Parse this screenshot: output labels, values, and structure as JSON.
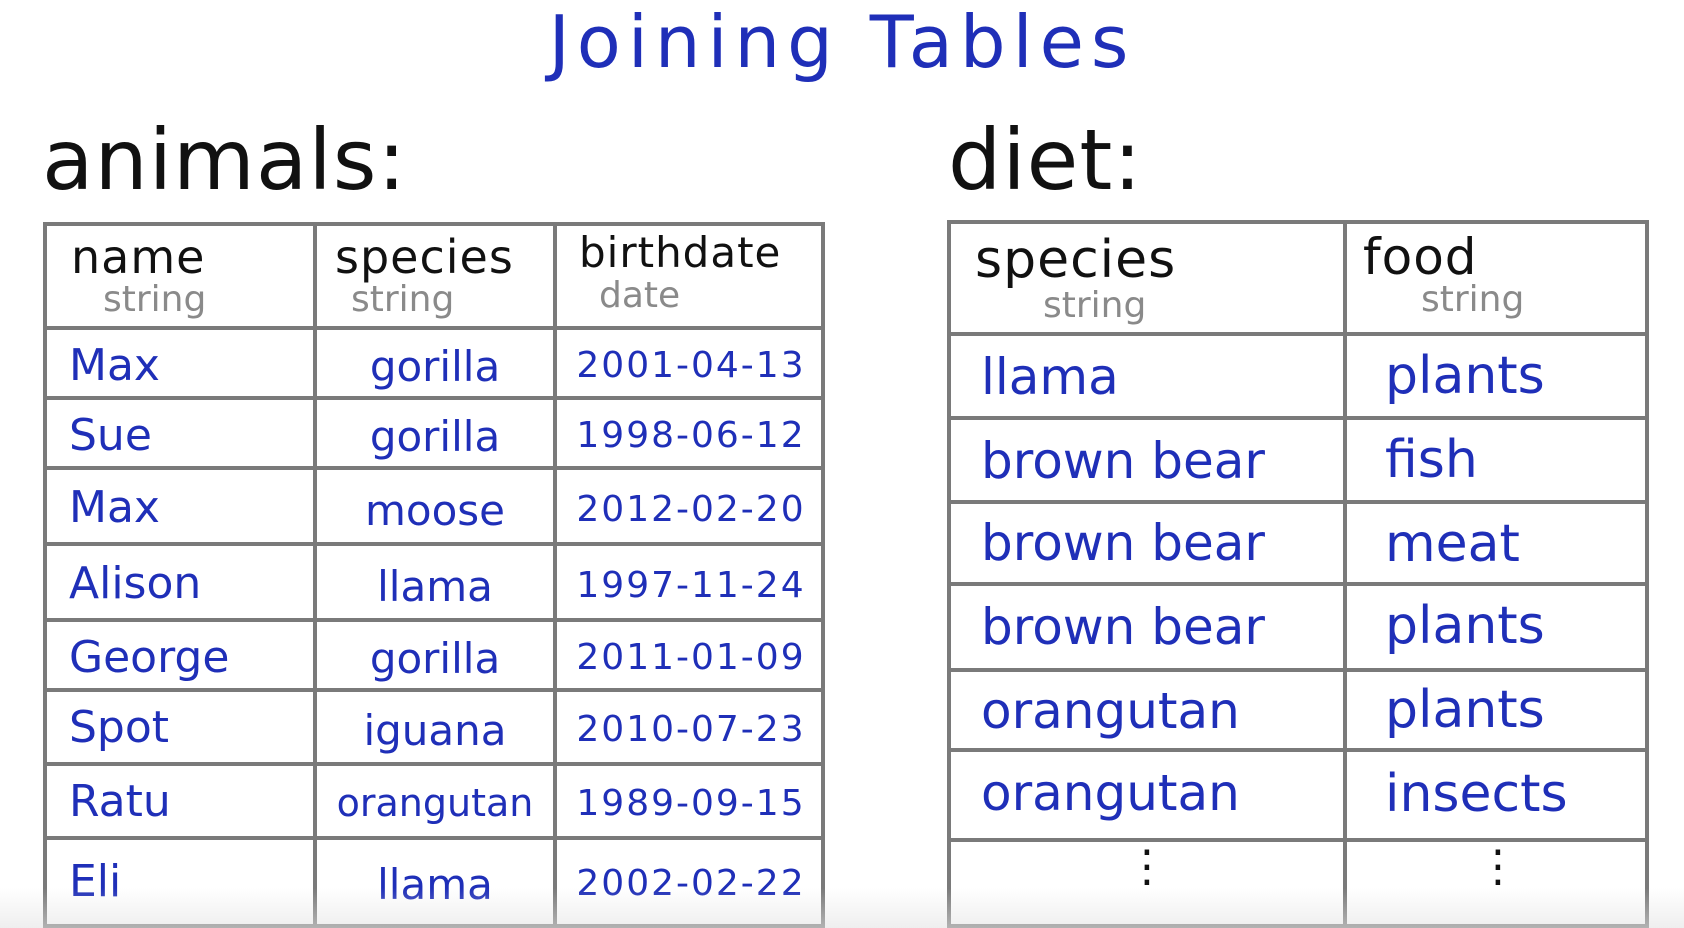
{
  "title": "Joining Tables",
  "animals": {
    "table_label": "animals:",
    "columns": [
      {
        "name": "name",
        "type": "string"
      },
      {
        "name": "species",
        "type": "string"
      },
      {
        "name": "birthdate",
        "type": "date"
      }
    ],
    "rows": [
      {
        "name": "Max",
        "species": "gorilla",
        "birthdate": "2001-04-13"
      },
      {
        "name": "Sue",
        "species": "gorilla",
        "birthdate": "1998-06-12"
      },
      {
        "name": "Max",
        "species": "moose",
        "birthdate": "2012-02-20"
      },
      {
        "name": "Alison",
        "species": "llama",
        "birthdate": "1997-11-24"
      },
      {
        "name": "George",
        "species": "gorilla",
        "birthdate": "2011-01-09"
      },
      {
        "name": "Spot",
        "species": "iguana",
        "birthdate": "2010-07-23"
      },
      {
        "name": "Ratu",
        "species": "orangutan",
        "birthdate": "1989-09-15"
      },
      {
        "name": "Eli",
        "species": "llama",
        "birthdate": "2002-02-22"
      }
    ]
  },
  "diet": {
    "table_label": "diet:",
    "columns": [
      {
        "name": "species",
        "type": "string"
      },
      {
        "name": "food",
        "type": "string"
      }
    ],
    "rows": [
      {
        "species": "llama",
        "food": "plants"
      },
      {
        "species": "brown bear",
        "food": "fish"
      },
      {
        "species": "brown bear",
        "food": "meat"
      },
      {
        "species": "brown bear",
        "food": "plants"
      },
      {
        "species": "orangutan",
        "food": "plants"
      },
      {
        "species": "orangutan",
        "food": "insects"
      }
    ],
    "continuation": "⋮"
  }
}
